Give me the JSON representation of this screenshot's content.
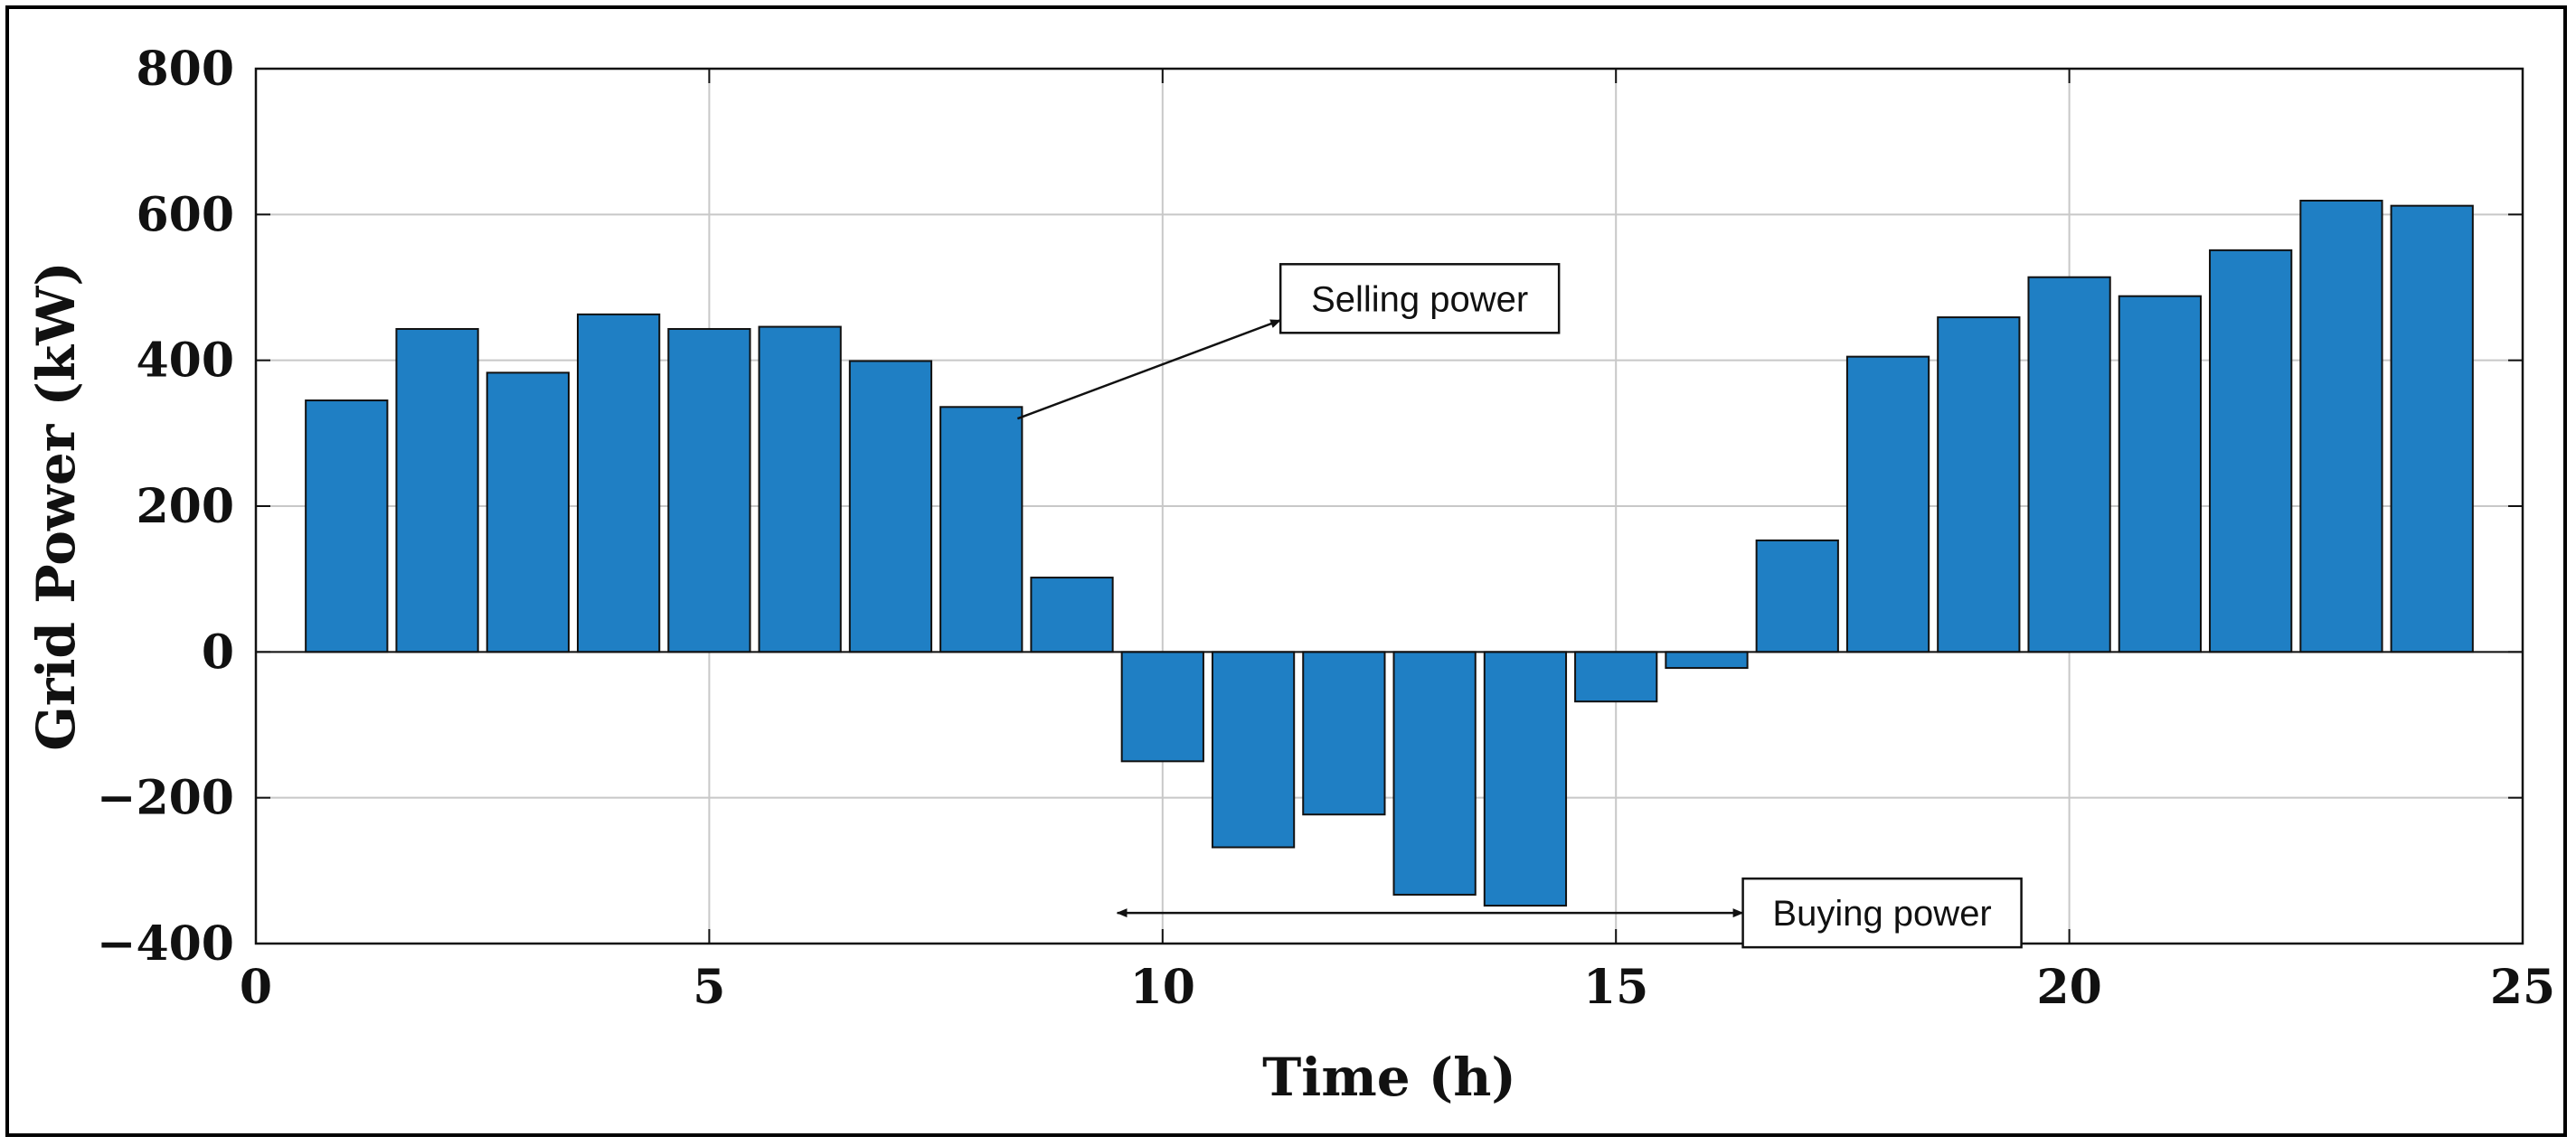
{
  "chart_data": {
    "type": "bar",
    "title": "",
    "xlabel": "Time (h)",
    "ylabel": "Grid Power (kW)",
    "xlim": [
      0,
      25
    ],
    "ylim": [
      -400,
      800
    ],
    "grid": true,
    "bar_color": "#1f7fc4",
    "x": [
      1,
      2,
      3,
      4,
      5,
      6,
      7,
      8,
      9,
      10,
      11,
      12,
      13,
      14,
      15,
      16,
      17,
      18,
      19,
      20,
      21,
      22,
      23,
      24
    ],
    "values": [
      345,
      443,
      383,
      463,
      443,
      446,
      399,
      336,
      102,
      -150,
      -268,
      -223,
      -333,
      -348,
      -68,
      -22,
      153,
      405,
      459,
      514,
      488,
      551,
      619,
      612
    ],
    "x_ticks": [
      {
        "value": 0,
        "label": "0"
      },
      {
        "value": 5,
        "label": "5"
      },
      {
        "value": 10,
        "label": "10"
      },
      {
        "value": 15,
        "label": "15"
      },
      {
        "value": 20,
        "label": "20"
      },
      {
        "value": 25,
        "label": "25"
      }
    ],
    "y_ticks": [
      {
        "value": 800,
        "label": "800"
      },
      {
        "value": 600,
        "label": "600"
      },
      {
        "value": 400,
        "label": "400"
      },
      {
        "value": 200,
        "label": "200"
      },
      {
        "value": 0,
        "label": "0"
      },
      {
        "value": -200,
        "label": "−200"
      },
      {
        "value": -400,
        "label": "−400"
      }
    ],
    "annotations": [
      {
        "text": "Selling power",
        "arrow_from": [
          8.4,
          320
        ],
        "arrow_to": [
          11.3,
          455
        ],
        "double_headed": false
      },
      {
        "text": "Buying power",
        "arrow_from": [
          9.5,
          -358
        ],
        "arrow_to": [
          16.4,
          -358
        ],
        "double_headed": true
      }
    ]
  }
}
